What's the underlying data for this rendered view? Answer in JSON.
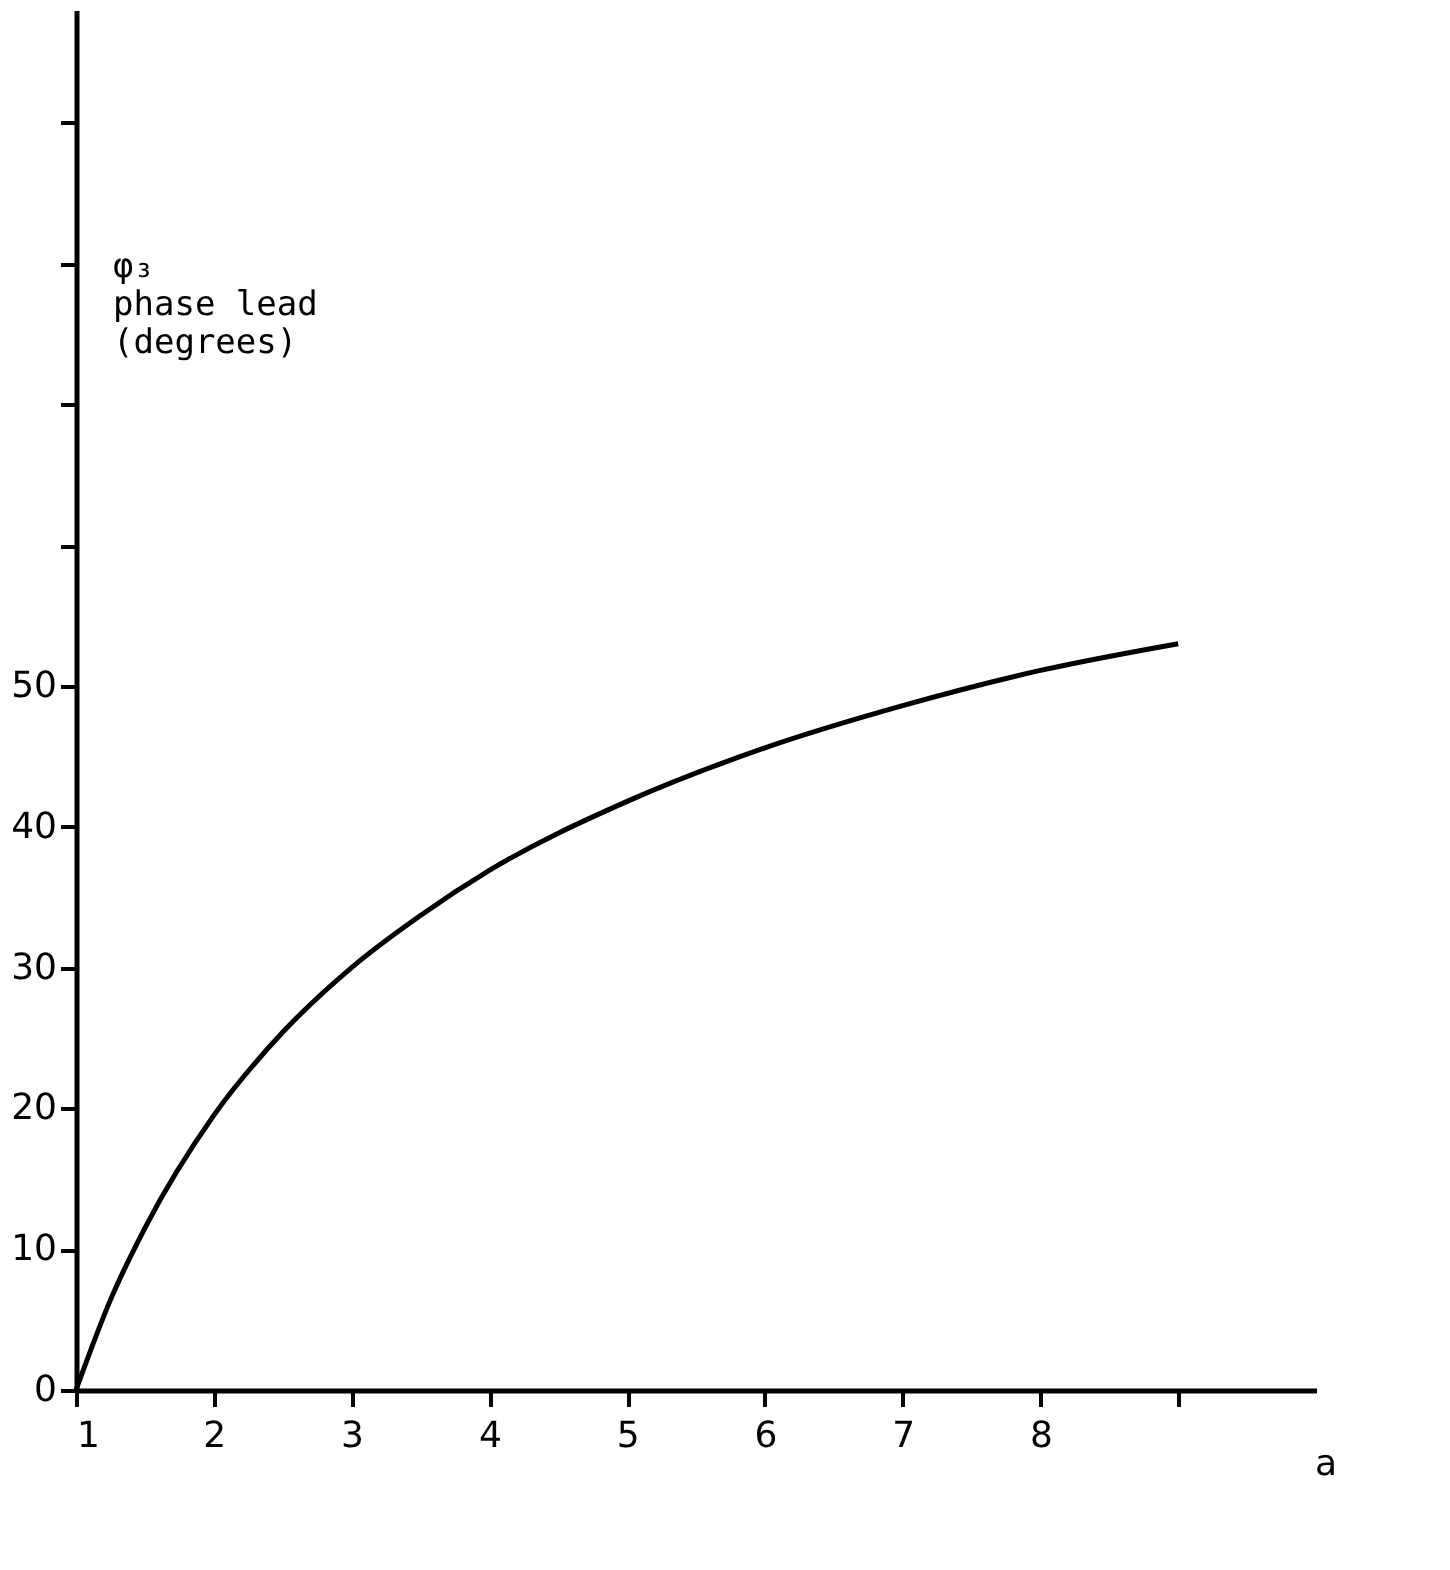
{
  "chart_data": {
    "type": "line",
    "xlabel": "a",
    "ylabel": "φ₃\nphase lead\n (degrees)",
    "x": [
      1,
      1.25,
      1.5,
      2,
      2.5,
      3,
      3.5,
      4,
      5,
      6,
      7,
      8,
      9
    ],
    "series": [
      {
        "color": "#000000",
        "values": [
          0,
          6.4,
          11.5,
          19.5,
          25.4,
          30,
          33.7,
          36.9,
          41.8,
          45.6,
          48.6,
          51.1,
          53
        ]
      }
    ],
    "xlim": [
      1,
      10
    ],
    "ylim": [
      0,
      98
    ],
    "xticks": [
      1,
      2,
      3,
      4,
      5,
      6,
      7,
      8,
      {
        "value": 9,
        "label": null
      }
    ],
    "yticks": [
      0,
      10,
      20,
      30,
      40,
      50,
      {
        "value": 60,
        "label": null
      },
      {
        "value": 70,
        "label": null
      },
      {
        "value": 80,
        "label": null
      },
      {
        "value": 90,
        "label": null
      }
    ],
    "grid": false,
    "marker": "none",
    "line_style": "solid"
  }
}
